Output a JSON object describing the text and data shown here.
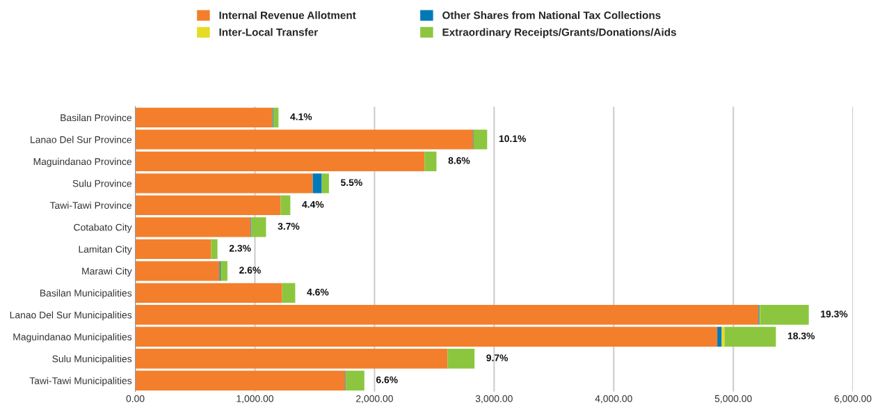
{
  "chart_data": {
    "type": "bar",
    "orientation": "horizontal",
    "stacked": true,
    "categories": [
      "Basilan Province",
      "Lanao Del Sur Province",
      "Maguindanao Province",
      "Sulu Province",
      "Tawi-Tawi Province",
      "Cotabato City",
      "Lamitan City",
      "Marawi City",
      "Basilan Municipalities",
      "Lanao Del Sur Municipalities",
      "Maguindanao Municipalities",
      "Sulu Municipalities",
      "Tawi-Tawi Municipalities"
    ],
    "series": [
      {
        "name": "Internal Revenue Allotment",
        "color": "#f37f2c",
        "values": [
          1147,
          2824,
          2418,
          1484,
          1215,
          965,
          634,
          704,
          1228,
          5211,
          4866,
          2611,
          1756
        ]
      },
      {
        "name": "Other Shares from National Tax Collections",
        "color": "#0079b8",
        "values": [
          6,
          4,
          0,
          75,
          0,
          6,
          0,
          8,
          0,
          8,
          37,
          0,
          5
        ]
      },
      {
        "name": "Inter-Local Transfer",
        "color": "#e5dc24",
        "values": [
          0,
          0,
          0,
          0,
          0,
          0,
          0,
          0,
          0,
          6,
          23,
          0,
          0
        ]
      },
      {
        "name": "Extraordinary Receipts/Grants/Donations/Aids",
        "color": "#8cc63f",
        "values": [
          44,
          114,
          100,
          60,
          81,
          122,
          53,
          58,
          109,
          406,
          430,
          225,
          154
        ]
      }
    ],
    "annotations": [
      {
        "text": "4.1%",
        "x": 1197,
        "y": "Basilan Province"
      },
      {
        "text": "10.1%",
        "x": 2942,
        "y": "Lanao Del Sur Province"
      },
      {
        "text": "8.6%",
        "x": 2518,
        "y": "Maguindanao Province"
      },
      {
        "text": "5.5%",
        "x": 1619,
        "y": "Sulu Province"
      },
      {
        "text": "4.4%",
        "x": 1296,
        "y": "Tawi-Tawi Province"
      },
      {
        "text": "3.7%",
        "x": 1093,
        "y": "Cotabato City"
      },
      {
        "text": "2.3%",
        "x": 687,
        "y": "Lamitan City"
      },
      {
        "text": "2.6%",
        "x": 770,
        "y": "Marawi City"
      },
      {
        "text": "4.6%",
        "x": 1337,
        "y": "Basilan Municipalities"
      },
      {
        "text": "19.3%",
        "x": 5631,
        "y": "Lanao Del Sur Municipalities"
      },
      {
        "text": "18.3%",
        "x": 5356,
        "y": "Maguindanao Municipalities"
      },
      {
        "text": "9.7%",
        "x": 2836,
        "y": "Sulu Municipalities"
      },
      {
        "text": "6.6%",
        "x": 1915,
        "y": "Tawi-Tawi Municipalities"
      }
    ],
    "xlim": [
      0,
      6000
    ],
    "xticks": [
      {
        "value": 0,
        "label": "0.00"
      },
      {
        "value": 1000,
        "label": "1,000.00"
      },
      {
        "value": 2000,
        "label": "2,000.00"
      },
      {
        "value": 3000,
        "label": "3,000.00"
      },
      {
        "value": 4000,
        "label": "4,000.00"
      },
      {
        "value": 5000,
        "label": "5,000.00"
      },
      {
        "value": 6000,
        "label": "6,000.00"
      }
    ],
    "grid": "x",
    "legend": "top"
  }
}
